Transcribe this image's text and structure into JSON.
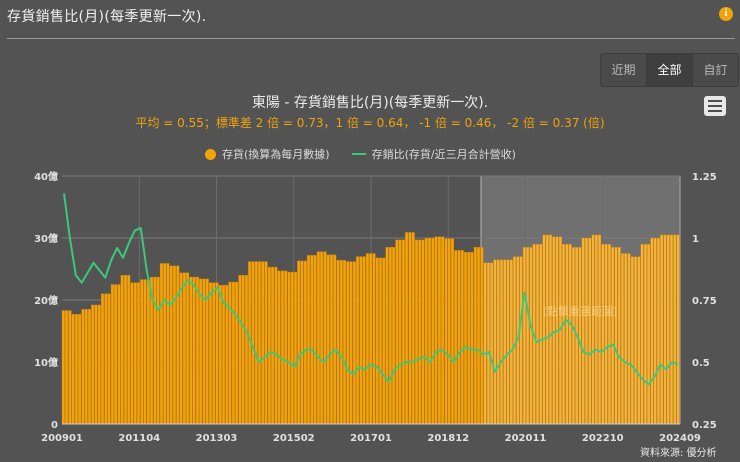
{
  "header": {
    "title": "存貨銷售比(月)(每季更新一次).",
    "info_icon": "i"
  },
  "range_selector": {
    "buttons": [
      {
        "label": "近期",
        "active": false
      },
      {
        "label": "全部",
        "active": true
      },
      {
        "label": "自訂",
        "active": false
      }
    ]
  },
  "menu_icon": "hamburger-menu-icon",
  "chart": {
    "title": "東陽 - 存貨銷售比(月)(每季更新一次).",
    "subtitle": "平均 = 0.55；標準差 2 倍 = 0.73，1 倍 = 0.64， -1 倍 = 0.46， -2 倍 = 0.37 (倍)",
    "legend": {
      "bar_label": "存貨(換算為每月數據)",
      "line_label": "存銷比(存貨/近三月合計營收)"
    },
    "highlight_label": "(點擊重選範圍)",
    "source": "資料來源: 優分析"
  },
  "colors": {
    "bar": "#f5a30a",
    "bar_edge": "#c98208",
    "line": "#3cc87a",
    "subtitle": "#f0a30a",
    "background": "#535353"
  },
  "chart_data": {
    "type": "bar+line",
    "title": "東陽 - 存貨銷售比(月)(每季更新一次).",
    "subtitle": "平均 = 0.55；標準差 2 倍 = 0.73，1 倍 = 0.64， -1 倍 = 0.46， -2 倍 = 0.37 (倍)",
    "x_tick_labels": [
      "200901",
      "201104",
      "201303",
      "201502",
      "201701",
      "201812",
      "202011",
      "202210",
      "202409"
    ],
    "y_left": {
      "ticks": [
        "0",
        "10億",
        "20億",
        "30億",
        "40億"
      ],
      "range": [
        0,
        40
      ],
      "unit": "億"
    },
    "y_right": {
      "ticks": [
        "0.25",
        "0.5",
        "0.75",
        "1",
        "1.25"
      ],
      "range": [
        0.25,
        1.25
      ]
    },
    "legend": [
      "存貨(換算為每月數據)",
      "存銷比(存貨/近三月合計營收)"
    ],
    "highlight_range_start": "202003",
    "series": [
      {
        "name": "存貨(換算為每月數據)",
        "type": "bar",
        "axis": "left",
        "frequency": "quarterly (each value spans 3 monthly bars), from 2009Q1 to 2024Q3",
        "values": [
          18.3,
          17.7,
          18.5,
          19.2,
          21.0,
          22.5,
          24.0,
          22.8,
          23.3,
          23.7,
          25.9,
          25.5,
          24.4,
          23.7,
          23.4,
          22.8,
          22.4,
          22.9,
          24.0,
          26.2,
          26.2,
          25.3,
          24.7,
          24.5,
          26.3,
          27.2,
          27.8,
          27.3,
          26.4,
          26.2,
          27.0,
          27.5,
          26.8,
          28.5,
          29.7,
          30.9,
          29.7,
          30.0,
          30.2,
          29.9,
          28.0,
          27.7,
          28.5,
          26.0,
          26.5,
          26.5,
          27.0,
          28.5,
          29.0,
          30.5,
          30.2,
          29.0,
          28.5,
          30.0,
          30.5,
          29.0,
          28.5,
          27.5,
          27.0,
          29.0,
          30.0,
          30.5,
          30.5
        ]
      },
      {
        "name": "存銷比(存貨/近三月合計營收)",
        "type": "line",
        "axis": "right",
        "values_sampled": [
          1.18,
          1.0,
          0.85,
          0.82,
          0.86,
          0.9,
          0.87,
          0.84,
          0.91,
          0.96,
          0.92,
          0.98,
          1.03,
          1.04,
          0.87,
          0.75,
          0.71,
          0.75,
          0.73,
          0.76,
          0.8,
          0.83,
          0.81,
          0.77,
          0.75,
          0.78,
          0.8,
          0.74,
          0.72,
          0.69,
          0.66,
          0.62,
          0.56,
          0.5,
          0.52,
          0.54,
          0.53,
          0.51,
          0.5,
          0.48,
          0.53,
          0.55,
          0.55,
          0.52,
          0.5,
          0.53,
          0.55,
          0.52,
          0.47,
          0.45,
          0.48,
          0.47,
          0.49,
          0.48,
          0.45,
          0.42,
          0.47,
          0.49,
          0.5,
          0.5,
          0.51,
          0.52,
          0.5,
          0.54,
          0.55,
          0.53,
          0.5,
          0.54,
          0.56,
          0.55,
          0.55,
          0.53,
          0.54,
          0.46,
          0.5,
          0.53,
          0.55,
          0.6,
          0.78,
          0.65,
          0.58,
          0.59,
          0.6,
          0.62,
          0.63,
          0.67,
          0.65,
          0.6,
          0.54,
          0.53,
          0.55,
          0.54,
          0.56,
          0.57,
          0.52,
          0.5,
          0.49,
          0.46,
          0.43,
          0.41,
          0.44,
          0.49,
          0.47,
          0.5,
          0.49
        ]
      }
    ]
  }
}
